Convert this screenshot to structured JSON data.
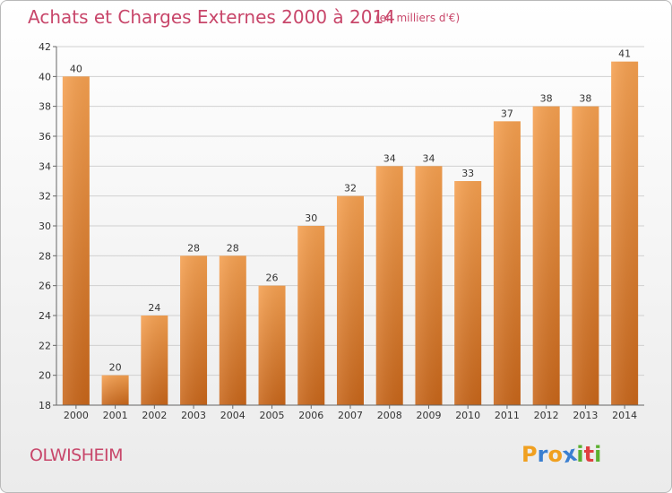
{
  "header": {
    "title": "Achats et Charges Externes 2000 à 2014",
    "unit": "(en milliers d'€)"
  },
  "footer": {
    "place": "OLWISHEIM",
    "logo_letters": [
      "P",
      "r",
      "o",
      "x",
      "i",
      "t",
      "i"
    ],
    "logo_colors": [
      "#f0a020",
      "#3a7fd0",
      "#f0a020",
      "#3a7fd0",
      "#5bb030",
      "#e04040",
      "#5bb030"
    ]
  },
  "colors": {
    "bar_top": "#f5a050",
    "bar_bottom": "#c8661a",
    "title": "#c8466a"
  },
  "chart_data": {
    "type": "bar",
    "categories": [
      "2000",
      "2001",
      "2002",
      "2003",
      "2004",
      "2005",
      "2006",
      "2007",
      "2008",
      "2009",
      "2010",
      "2011",
      "2012",
      "2013",
      "2014"
    ],
    "values": [
      40,
      20,
      24,
      28,
      28,
      26,
      30,
      32,
      34,
      34,
      33,
      37,
      38,
      38,
      41
    ],
    "ylim": [
      18,
      42
    ],
    "yticks": [
      18,
      20,
      22,
      24,
      26,
      28,
      30,
      32,
      34,
      36,
      38,
      40,
      42
    ],
    "grid": true
  }
}
